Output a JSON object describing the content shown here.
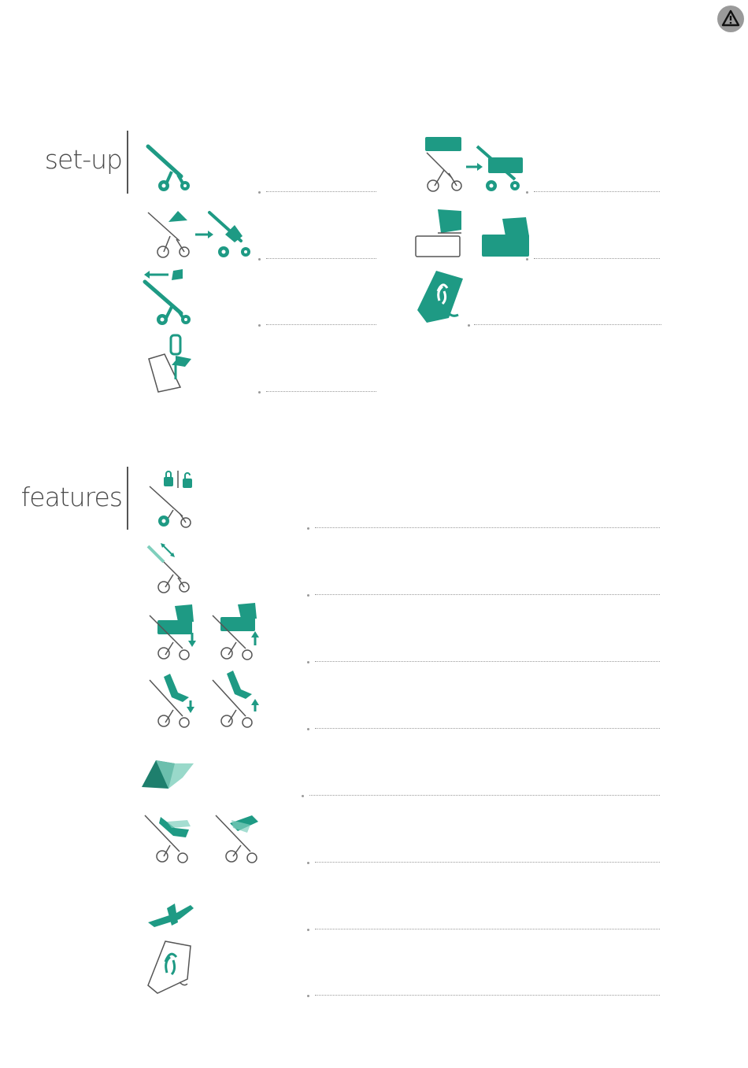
{
  "sections": {
    "setup": {
      "title": "set-up"
    },
    "features": {
      "title": "features"
    }
  },
  "icons": {
    "warning": "warning-triangle-icon"
  },
  "colors": {
    "accent": "#1e9a84",
    "outline": "#555555",
    "dots": "#9a9a9a"
  }
}
